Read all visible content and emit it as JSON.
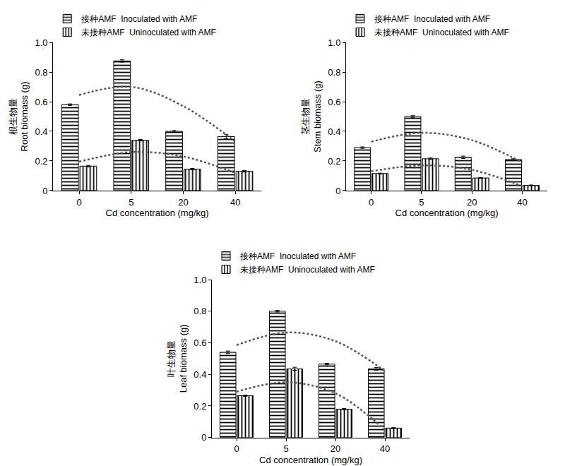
{
  "chart_data": [
    {
      "type": "bar",
      "categories": [
        "0",
        "5",
        "20",
        "40"
      ],
      "x_label": "Cd concentration (mg/kg)",
      "y_label": [
        "根生物量",
        "Root biomass (g)"
      ],
      "ylim": [
        0,
        1
      ],
      "yticks": [
        0,
        0.2,
        0.4,
        0.6,
        0.8,
        {
          "value": 1,
          "label": "1.0"
        }
      ],
      "legend": "top left",
      "grid": false,
      "series": [
        {
          "name": "接种AMF  Inoculated with AMF",
          "color": "#000000",
          "marker": "horizontal",
          "values": [
            0.58,
            0.875,
            0.4,
            0.365
          ],
          "errors": [
            0.005,
            0.008,
            0.005,
            0.015
          ]
        },
        {
          "name": "未接种AMF  Uninoculated with AMF",
          "color": "#000000",
          "marker": "vertical",
          "values": [
            0.165,
            0.34,
            0.145,
            0.13
          ],
          "errors": [
            0.005,
            0.005,
            0.005,
            0.005
          ]
        },
        {
          "type": "line",
          "line_style": "dotted",
          "color": "#555555",
          "values": [
            0.645,
            0.7,
            0.57,
            0.33
          ]
        },
        {
          "type": "line",
          "line_style": "dotted",
          "color": "#555555",
          "values": [
            0.195,
            0.26,
            0.23,
            0.12
          ]
        }
      ]
    },
    {
      "type": "bar",
      "categories": [
        "0",
        "5",
        "20",
        "40"
      ],
      "x_label": "Cd concentration (mg/kg)",
      "y_label": [
        "茎生物量",
        "Stem biomass (g)"
      ],
      "ylim": [
        0,
        1
      ],
      "yticks": [
        0,
        0.2,
        0.4,
        0.6,
        0.8,
        {
          "value": 1,
          "label": "1.0"
        }
      ],
      "legend": "top left",
      "grid": false,
      "series": [
        {
          "name": "接种AMF  Inoculated with AMF",
          "color": "#000000",
          "marker": "horizontal",
          "values": [
            0.29,
            0.5,
            0.225,
            0.21
          ],
          "errors": [
            0.005,
            0.006,
            0.008,
            0.005
          ]
        },
        {
          "name": "未接种AMF  Uninoculated with AMF",
          "color": "#000000",
          "marker": "vertical",
          "values": [
            0.115,
            0.215,
            0.085,
            0.035
          ],
          "errors": [
            0.003,
            0.005,
            0.003,
            0.003
          ]
        },
        {
          "type": "line",
          "line_style": "dotted",
          "color": "#555555",
          "values": [
            0.33,
            0.39,
            0.34,
            0.19
          ]
        },
        {
          "type": "line",
          "line_style": "dotted",
          "color": "#555555",
          "values": [
            0.13,
            0.17,
            0.14,
            0.03
          ]
        }
      ]
    },
    {
      "type": "bar",
      "categories": [
        "0",
        "5",
        "20",
        "40"
      ],
      "x_label": "Cd concentration (mg/kg)",
      "y_label": [
        "叶生物量",
        "Leaf biomass (g)"
      ],
      "ylim": [
        0,
        1
      ],
      "yticks": [
        0,
        0.2,
        0.4,
        0.6,
        0.8,
        {
          "value": 1,
          "label": "1.0"
        }
      ],
      "legend": "top left",
      "grid": false,
      "series": [
        {
          "name": "接种AMF  Inoculated with AMF",
          "color": "#000000",
          "marker": "horizontal",
          "values": [
            0.54,
            0.8,
            0.465,
            0.435
          ],
          "errors": [
            0.008,
            0.005,
            0.005,
            0.008
          ]
        },
        {
          "name": "未接种AMF  Uninoculated with AMF",
          "color": "#000000",
          "marker": "vertical",
          "values": [
            0.265,
            0.435,
            0.18,
            0.06
          ],
          "errors": [
            0.004,
            0.01,
            0.004,
            0.003
          ]
        },
        {
          "type": "line",
          "line_style": "dotted",
          "color": "#555555",
          "values": [
            0.585,
            0.665,
            0.61,
            0.42
          ]
        },
        {
          "type": "line",
          "line_style": "dotted",
          "color": "#555555",
          "values": [
            0.29,
            0.35,
            0.28,
            0.05
          ]
        }
      ]
    }
  ]
}
